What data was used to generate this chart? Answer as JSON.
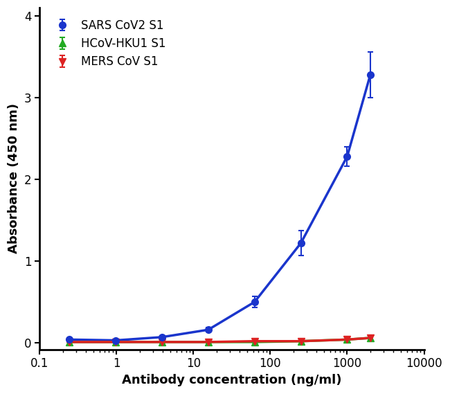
{
  "xlabel": "Antibody concentration (ng/ml)",
  "ylabel": "Absorbance (450 nm)",
  "xlim": [
    0.15,
    6000
  ],
  "ylim": [
    -0.08,
    4.1
  ],
  "yticks": [
    0,
    1,
    2,
    3,
    4
  ],
  "sars_x": [
    0.244,
    0.977,
    3.906,
    15.625,
    62.5,
    250,
    1000,
    2000
  ],
  "sars_y": [
    0.04,
    0.03,
    0.07,
    0.16,
    0.5,
    1.22,
    2.28,
    3.28
  ],
  "sars_yerr": [
    0.005,
    0.008,
    0.012,
    0.025,
    0.07,
    0.15,
    0.12,
    0.28
  ],
  "sars_color": "#1a35cc",
  "sars_label": "SARS CoV2 S1",
  "hcov_x": [
    0.244,
    0.977,
    3.906,
    15.625,
    62.5,
    250,
    1000,
    2000
  ],
  "hcov_y": [
    0.01,
    0.01,
    0.01,
    0.01,
    0.01,
    0.02,
    0.04,
    0.06
  ],
  "hcov_yerr": [
    0.003,
    0.003,
    0.003,
    0.003,
    0.003,
    0.003,
    0.003,
    0.003
  ],
  "hcov_color": "#22aa22",
  "hcov_label": "HCoV-HKU1 S1",
  "mers_x": [
    0.244,
    0.977,
    3.906,
    15.625,
    62.5,
    250,
    1000,
    2000
  ],
  "mers_y": [
    0.01,
    0.01,
    0.01,
    0.01,
    0.02,
    0.02,
    0.04,
    0.06
  ],
  "mers_yerr": [
    0.003,
    0.003,
    0.003,
    0.003,
    0.003,
    0.003,
    0.003,
    0.003
  ],
  "mers_color": "#dd2222",
  "mers_label": "MERS CoV S1",
  "marker_size": 7,
  "linewidth": 2.5,
  "capsize": 3,
  "legend_fontsize": 12,
  "axis_label_fontsize": 13,
  "tick_fontsize": 12
}
